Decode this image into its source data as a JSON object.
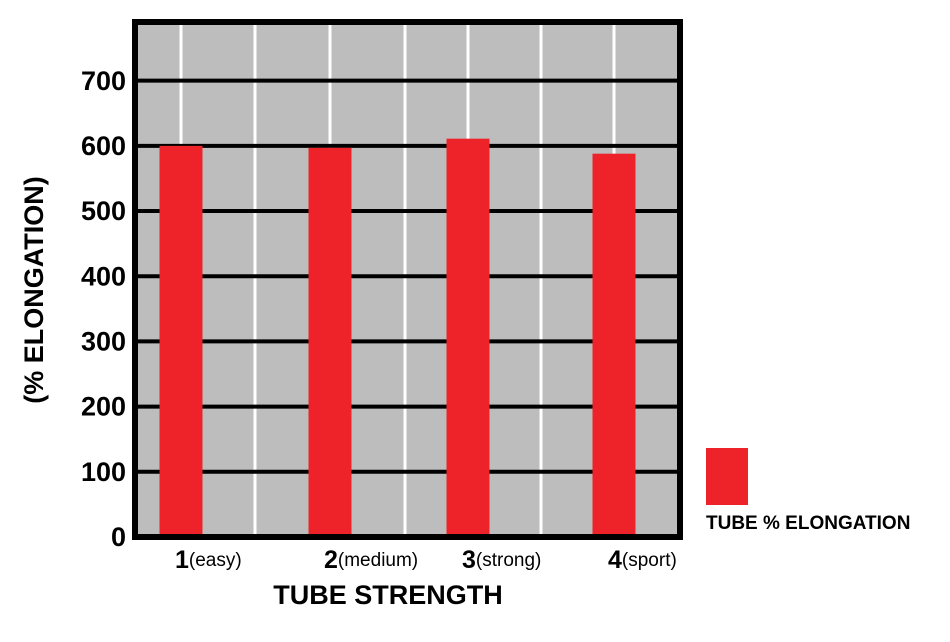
{
  "chart_data": {
    "type": "bar",
    "x_label": "TUBE STRENGTH",
    "y_label": "(% ELONGATION)",
    "categories": [
      "1(easy)",
      "2(medium)",
      "3(strong)",
      "4(sport)"
    ],
    "series": [
      {
        "name": "TUBE % ELONGATION",
        "color": "#ee2229",
        "values": [
          600,
          597,
          611,
          588
        ]
      }
    ],
    "ylim": [
      0,
      790
    ],
    "yticks": [
      0,
      100,
      200,
      300,
      400,
      500,
      600,
      700
    ],
    "grid": true
  }
}
